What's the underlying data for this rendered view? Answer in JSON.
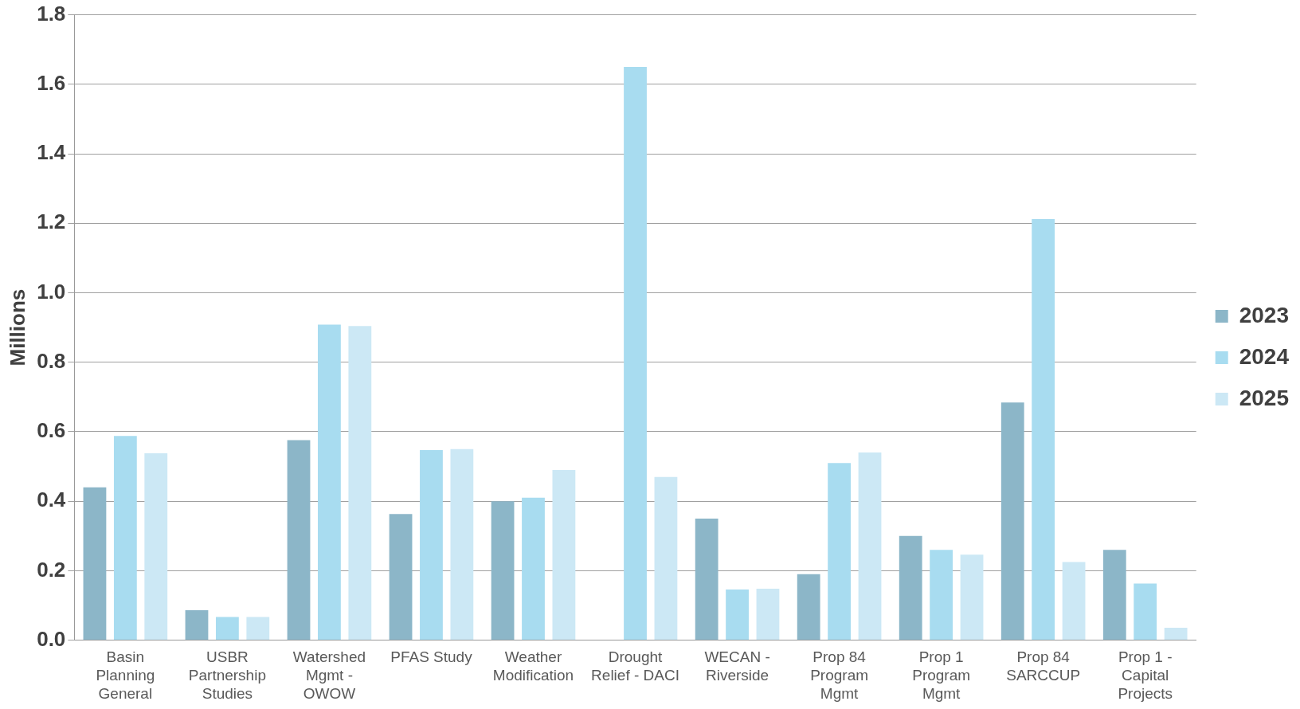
{
  "chart_data": {
    "type": "bar",
    "ylabel": "Millions",
    "categories": [
      "Basin Planning General",
      "USBR Partnership Studies",
      "Watershed Mgmt - OWOW",
      "PFAS Study",
      "Weather Modification",
      "Drought Relief - DACI",
      "WECAN - Riverside",
      "Prop 84 Program Mgmt",
      "Prop 1 Program Mgmt",
      "Prop 84 SARCCUP",
      "Prop 1 - Capital Projects"
    ],
    "series": [
      {
        "name": "2023",
        "color": "#8cb6c8",
        "values": [
          0.44,
          0.086,
          0.576,
          0.363,
          0.4,
          0,
          0.35,
          0.19,
          0.3,
          0.684,
          0.26
        ]
      },
      {
        "name": "2024",
        "color": "#a8dcf0",
        "values": [
          0.588,
          0.067,
          0.908,
          0.547,
          0.41,
          1.65,
          0.146,
          0.51,
          0.26,
          1.212,
          0.163
        ]
      },
      {
        "name": "2025",
        "color": "#cce8f5",
        "values": [
          0.538,
          0.067,
          0.904,
          0.55,
          0.49,
          0.47,
          0.148,
          0.54,
          0.246,
          0.225,
          0.036
        ]
      }
    ],
    "ylim": [
      0,
      1.8
    ],
    "yticks": [
      {
        "value": 0,
        "label": "0.0"
      },
      {
        "value": 0.2,
        "label": "0.2"
      },
      {
        "value": 0.4,
        "label": "0.4"
      },
      {
        "value": 0.6,
        "label": "0.6"
      },
      {
        "value": 0.8,
        "label": "0.8"
      },
      {
        "value": 1.0,
        "label": "1.0"
      },
      {
        "value": 1.2,
        "label": "1.2"
      },
      {
        "value": 1.4,
        "label": "1.4"
      },
      {
        "value": 1.6,
        "label": "1.6"
      },
      {
        "value": 1.8,
        "label": "1.8"
      }
    ],
    "grid": "y",
    "legend": "right"
  }
}
